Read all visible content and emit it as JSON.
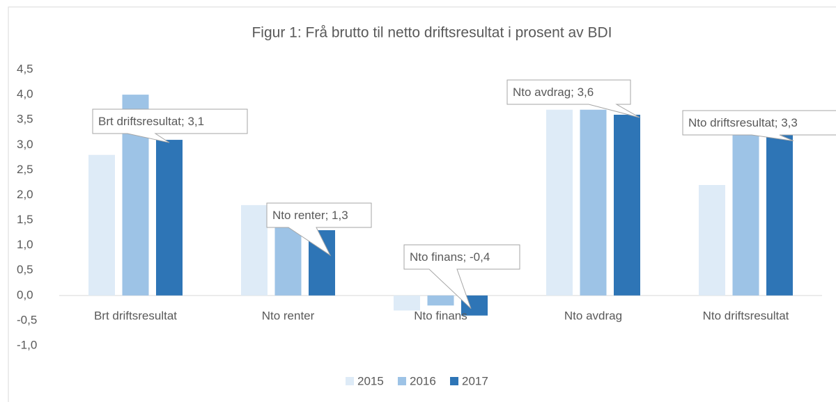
{
  "chart_data": {
    "type": "bar",
    "title": "Figur 1: Frå brutto til netto driftsresultat i prosent av BDI",
    "categories": [
      "Brt driftsresultat",
      "Nto renter",
      "Nto finans",
      "Nto avdrag",
      "Nto driftsresultat"
    ],
    "series": [
      {
        "name": "2015",
        "color": "#deebf7",
        "values": [
          2.8,
          1.8,
          -0.3,
          3.7,
          2.2
        ]
      },
      {
        "name": "2016",
        "color": "#9dc3e6",
        "values": [
          4.0,
          1.6,
          -0.2,
          3.7,
          3.5
        ]
      },
      {
        "name": "2017",
        "color": "#2e75b6",
        "values": [
          3.1,
          1.3,
          -0.4,
          3.6,
          3.3
        ],
        "value_labels": [
          "Brt driftsresultat; 3,1",
          "Nto renter; 1,3",
          "Nto finans; -0,4",
          "Nto avdrag; 3,6",
          "Nto driftsresultat; 3,3"
        ]
      }
    ],
    "ylim": [
      -1,
      4.5
    ],
    "yticks": [
      {
        "value": -1,
        "label": "-1,0"
      },
      {
        "value": -0.5,
        "label": "-0,5"
      },
      {
        "value": 0,
        "label": "0,0"
      },
      {
        "value": 0.5,
        "label": "0,5"
      },
      {
        "value": 1,
        "label": "1,0"
      },
      {
        "value": 1.5,
        "label": "1,5"
      },
      {
        "value": 2,
        "label": "2,0"
      },
      {
        "value": 2.5,
        "label": "2,5"
      },
      {
        "value": 3,
        "label": "3,0"
      },
      {
        "value": 3.5,
        "label": "3,5"
      },
      {
        "value": 4,
        "label": "4,0"
      },
      {
        "value": 4.5,
        "label": "4,5"
      }
    ],
    "grid": false,
    "legend": "bottom"
  }
}
